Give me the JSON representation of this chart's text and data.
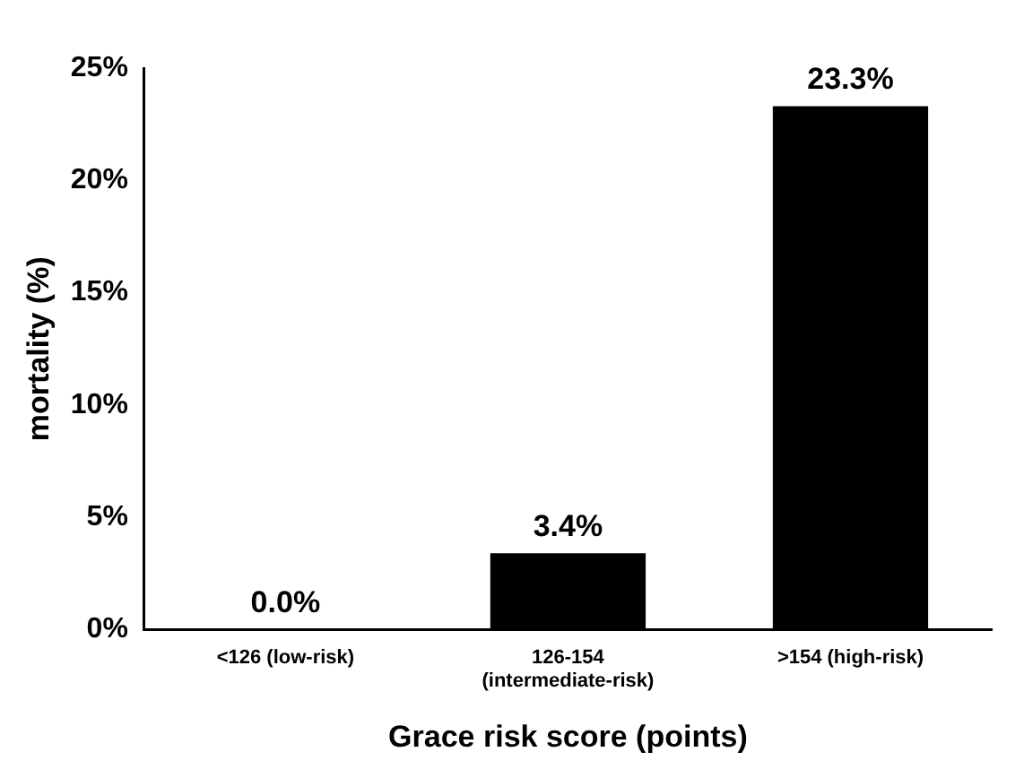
{
  "chart_data": {
    "type": "bar",
    "xlabel": "Grace risk score (points)",
    "ylabel": "mortality (%)",
    "categories": [
      "<126 (low-risk)",
      "126-154 (intermediate-risk)",
      ">154 (high-risk)"
    ],
    "values": [
      0,
      3.4,
      23.3
    ],
    "color": "#000000",
    "value_labels": [
      "0.0%",
      "3.4%",
      "23.3%"
    ],
    "ylim": [
      0,
      25
    ],
    "yticks": [
      {
        "value": 0,
        "label": "0%"
      },
      {
        "value": 5,
        "label": "5%"
      },
      {
        "value": 10,
        "label": "10%"
      },
      {
        "value": 15,
        "label": "15%"
      },
      {
        "value": 20,
        "label": "20%"
      },
      {
        "value": 25,
        "label": "25%"
      }
    ],
    "grid": false,
    "legend": false
  }
}
